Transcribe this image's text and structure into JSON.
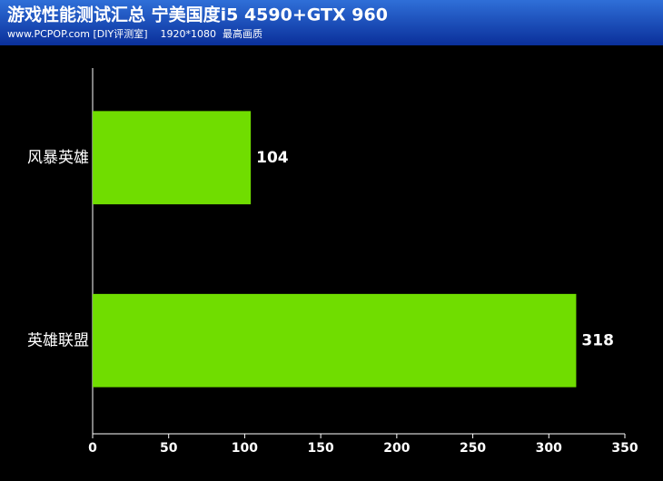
{
  "chart_data": {
    "type": "hbar",
    "title": "游戏性能测试汇总 宁美国度i5 4590+GTX 960",
    "subtitle": "www.PCPOP.com [DIY评测室]    1920*1080  最高画质",
    "categories": [
      "风暴英雄",
      "英雄联盟"
    ],
    "values": [
      104,
      318
    ],
    "color": "#70dd00",
    "xlim": [
      0,
      350
    ],
    "xticks": [
      0,
      50,
      100,
      150,
      200,
      250,
      300,
      350
    ],
    "grid": false
  }
}
